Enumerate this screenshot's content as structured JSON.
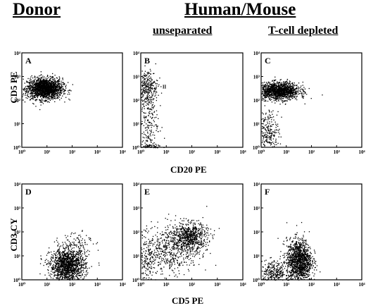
{
  "figure": {
    "headers": {
      "donor": "Donor",
      "human_mouse": "Human/Mouse",
      "unseparated": "unseparated",
      "tcell_depleted": "T-cell depleted"
    },
    "axis_labels": {
      "top_row_y": "CD5 PE",
      "top_row_x": "CD20 PE",
      "bottom_row_y": "CD3 CY",
      "bottom_row_x": "CD5 PE"
    },
    "tick_labels": [
      "10⁰",
      "10¹",
      "10²",
      "10³",
      "10⁴"
    ],
    "inline_annotation": "II"
  },
  "chart_data": [
    {
      "type": "scatter",
      "panel": "A",
      "xlim": [
        0,
        4
      ],
      "ylim": [
        0,
        4
      ],
      "xscale": "log",
      "yscale": "log",
      "clusters": [
        {
          "cx": 0.9,
          "cy": 2.5,
          "sx": 0.35,
          "sy": 0.22,
          "n": 1800
        }
      ]
    },
    {
      "type": "scatter",
      "panel": "B",
      "xlim": [
        0,
        4
      ],
      "ylim": [
        0,
        4
      ],
      "xscale": "log",
      "yscale": "log",
      "clusters": [
        {
          "cx": 0.25,
          "cy": 2.6,
          "sx": 0.2,
          "sy": 0.35,
          "n": 260
        },
        {
          "cx": 0.25,
          "cy": 1.2,
          "sx": 0.2,
          "sy": 0.8,
          "n": 220
        },
        {
          "cx": 0.3,
          "cy": 0.05,
          "sx": 0.25,
          "sy": 0.05,
          "n": 60
        }
      ]
    },
    {
      "type": "scatter",
      "panel": "C",
      "xlim": [
        0,
        4
      ],
      "ylim": [
        0,
        4
      ],
      "xscale": "log",
      "yscale": "log",
      "clusters": [
        {
          "cx": 0.7,
          "cy": 2.4,
          "sx": 0.4,
          "sy": 0.18,
          "n": 1400
        },
        {
          "cx": 0.3,
          "cy": 0.6,
          "sx": 0.2,
          "sy": 0.5,
          "n": 250
        }
      ]
    },
    {
      "type": "scatter",
      "panel": "D",
      "xlim": [
        0,
        4
      ],
      "ylim": [
        0,
        4
      ],
      "xscale": "log",
      "yscale": "log",
      "clusters": [
        {
          "cx": 1.8,
          "cy": 0.6,
          "sx": 0.35,
          "sy": 0.35,
          "n": 1400
        },
        {
          "cx": 2.2,
          "cy": 1.6,
          "sx": 0.3,
          "sy": 0.3,
          "n": 90
        }
      ]
    },
    {
      "type": "scatter",
      "panel": "E",
      "xlim": [
        0,
        4
      ],
      "ylim": [
        0,
        4
      ],
      "xscale": "log",
      "yscale": "log",
      "clusters": [
        {
          "cx": 1.9,
          "cy": 1.8,
          "sx": 0.35,
          "sy": 0.3,
          "n": 650
        },
        {
          "cx": 1.1,
          "cy": 1.3,
          "sx": 0.6,
          "sy": 0.5,
          "n": 550
        },
        {
          "cx": 0.2,
          "cy": 0.5,
          "sx": 0.15,
          "sy": 0.5,
          "n": 120
        }
      ]
    },
    {
      "type": "scatter",
      "panel": "F",
      "xlim": [
        0,
        4
      ],
      "ylim": [
        0,
        4
      ],
      "xscale": "log",
      "yscale": "log",
      "clusters": [
        {
          "cx": 1.5,
          "cy": 0.8,
          "sx": 0.25,
          "sy": 0.45,
          "n": 1300
        },
        {
          "cx": 0.5,
          "cy": 0.3,
          "sx": 0.3,
          "sy": 0.25,
          "n": 300
        }
      ]
    }
  ]
}
